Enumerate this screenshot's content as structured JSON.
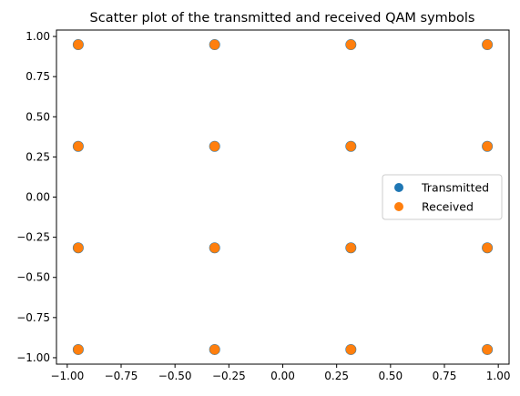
{
  "chart_data": {
    "type": "scatter",
    "title": "Scatter plot of the transmitted and received QAM symbols",
    "xlabel": "",
    "ylabel": "",
    "xlim": [
      -1.05,
      1.05
    ],
    "ylim": [
      -1.04,
      1.04
    ],
    "grid": false,
    "legend_position": "center-right",
    "x_ticks": [
      "−1.00",
      "−0.75",
      "−0.50",
      "−0.25",
      "0.00",
      "0.25",
      "0.50",
      "0.75",
      "1.00"
    ],
    "y_ticks": [
      "−1.00",
      "−0.75",
      "−0.50",
      "−0.25",
      "0.00",
      "0.25",
      "0.50",
      "0.75",
      "1.00"
    ],
    "series": [
      {
        "name": "Transmitted",
        "color": "#1f77b4",
        "points": [
          [
            -0.949,
            0.949
          ],
          [
            -0.316,
            0.949
          ],
          [
            0.316,
            0.949
          ],
          [
            0.949,
            0.949
          ],
          [
            -0.949,
            0.316
          ],
          [
            -0.316,
            0.316
          ],
          [
            0.316,
            0.316
          ],
          [
            0.949,
            0.316
          ],
          [
            -0.949,
            -0.316
          ],
          [
            -0.316,
            -0.316
          ],
          [
            0.316,
            -0.316
          ],
          [
            0.949,
            -0.316
          ],
          [
            -0.949,
            -0.949
          ],
          [
            -0.316,
            -0.949
          ],
          [
            0.316,
            -0.949
          ],
          [
            0.949,
            -0.949
          ]
        ]
      },
      {
        "name": "Received",
        "color": "#ff7f0e",
        "points": [
          [
            -0.949,
            0.949
          ],
          [
            -0.316,
            0.949
          ],
          [
            0.316,
            0.949
          ],
          [
            0.949,
            0.949
          ],
          [
            -0.949,
            0.316
          ],
          [
            -0.316,
            0.316
          ],
          [
            0.316,
            0.316
          ],
          [
            0.949,
            0.316
          ],
          [
            -0.949,
            -0.316
          ],
          [
            -0.316,
            -0.316
          ],
          [
            0.316,
            -0.316
          ],
          [
            0.949,
            -0.316
          ],
          [
            -0.949,
            -0.949
          ],
          [
            -0.316,
            -0.949
          ],
          [
            0.316,
            -0.949
          ],
          [
            0.949,
            -0.949
          ]
        ]
      }
    ]
  }
}
